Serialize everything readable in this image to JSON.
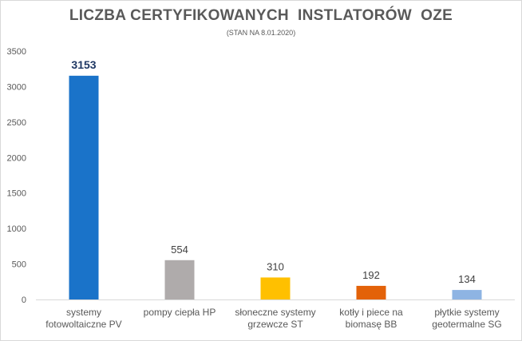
{
  "chart_data": {
    "type": "bar",
    "title": "LICZBA CERTYFIKOWANYCH  INSTLATORÓW  OZE",
    "subtitle": "(STAN NA 8.01.2020)",
    "categories": [
      [
        "systemy",
        "fotowoltaiczne PV"
      ],
      [
        "pompy ciepła HP"
      ],
      [
        "słoneczne systemy",
        "grzewcze ST"
      ],
      [
        "kotły i piece na",
        "biomasę BB"
      ],
      [
        "płytkie systemy",
        "geotermalne SG"
      ]
    ],
    "values": [
      3153,
      554,
      310,
      192,
      134
    ],
    "data_labels": [
      "3153",
      "554",
      "310",
      "192",
      "134"
    ],
    "colors": [
      "#1a73c9",
      "#afabab",
      "#ffc000",
      "#e36209",
      "#8eb4e3"
    ],
    "ylim": [
      0,
      3500
    ],
    "yticks": [
      0,
      500,
      1000,
      1500,
      2000,
      2500,
      3000,
      3500
    ],
    "grid": false,
    "xlabel": "",
    "ylabel": ""
  }
}
